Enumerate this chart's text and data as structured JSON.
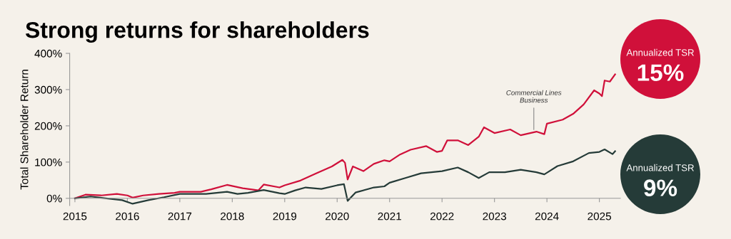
{
  "chart_data": {
    "type": "line",
    "title": "Strong returns for shareholders",
    "ylabel": "Total Shareholder Return",
    "xlim": [
      2014.9,
      2025.4
    ],
    "xticks": [
      2015,
      2016,
      2017,
      2018,
      2019,
      2020,
      2021,
      2022,
      2023,
      2024,
      2025
    ],
    "ylim": [
      -20,
      400
    ],
    "yticks": [
      {
        "value": 0,
        "label": "0%"
      },
      {
        "value": 100,
        "label": "100%"
      },
      {
        "value": 200,
        "label": "200%"
      },
      {
        "value": 300,
        "label": "300%"
      },
      {
        "value": 400,
        "label": "400%"
      }
    ],
    "grid": false,
    "legend": false,
    "marker": "none",
    "line_style": "solid",
    "series": [
      {
        "color": "#d0103a",
        "x": [
          2015.0,
          2015.2,
          2015.5,
          2015.8,
          2016.0,
          2016.1,
          2016.3,
          2016.6,
          2016.9,
          2017.0,
          2017.4,
          2017.6,
          2017.9,
          2018.2,
          2018.5,
          2018.6,
          2018.9,
          2019.0,
          2019.3,
          2019.6,
          2019.9,
          2020.1,
          2020.15,
          2020.2,
          2020.3,
          2020.5,
          2020.7,
          2020.9,
          2021.0,
          2021.2,
          2021.4,
          2021.7,
          2021.9,
          2022.0,
          2022.1,
          2022.3,
          2022.5,
          2022.7,
          2022.8,
          2023.0,
          2023.3,
          2023.5,
          2023.8,
          2023.95,
          2024.0,
          2024.3,
          2024.5,
          2024.7,
          2024.9,
          2025.0,
          2025.05,
          2025.1,
          2025.2,
          2025.3
        ],
        "values": [
          0,
          10,
          8,
          12,
          8,
          2,
          8,
          12,
          15,
          18,
          18,
          25,
          37,
          28,
          22,
          38,
          30,
          36,
          49,
          69,
          88,
          106,
          98,
          52,
          88,
          75,
          95,
          105,
          102,
          121,
          134,
          144,
          128,
          131,
          160,
          160,
          147,
          170,
          196,
          180,
          190,
          174,
          184,
          177,
          206,
          217,
          233,
          259,
          298,
          289,
          282,
          325,
          322,
          342
        ]
      },
      {
        "color": "#253b38",
        "x": [
          2015.0,
          2015.3,
          2015.6,
          2015.9,
          2016.1,
          2016.4,
          2016.7,
          2017.0,
          2017.5,
          2017.9,
          2018.1,
          2018.3,
          2018.6,
          2018.9,
          2019.0,
          2019.2,
          2019.4,
          2019.7,
          2020.0,
          2020.13,
          2020.2,
          2020.35,
          2020.7,
          2020.9,
          2021.0,
          2021.3,
          2021.6,
          2022.0,
          2022.3,
          2022.5,
          2022.7,
          2022.9,
          2023.2,
          2023.5,
          2023.8,
          2023.95,
          2024.2,
          2024.5,
          2024.8,
          2025.0,
          2025.1,
          2025.25,
          2025.3
        ],
        "values": [
          0,
          5,
          0,
          -5,
          -15,
          -5,
          3,
          12,
          12,
          18,
          12,
          15,
          23,
          14,
          12,
          22,
          30,
          26,
          36,
          39,
          -7,
          16,
          30,
          33,
          43,
          56,
          69,
          75,
          85,
          72,
          56,
          72,
          72,
          79,
          72,
          66,
          89,
          102,
          125,
          128,
          135,
          122,
          130
        ]
      }
    ],
    "annotations": [
      {
        "text": "Commercial Lines\nBusiness",
        "x": 2023.75,
        "y": 184
      },
      "Annualized TSR",
      "15%",
      "Annualized TSR",
      "9%"
    ]
  }
}
